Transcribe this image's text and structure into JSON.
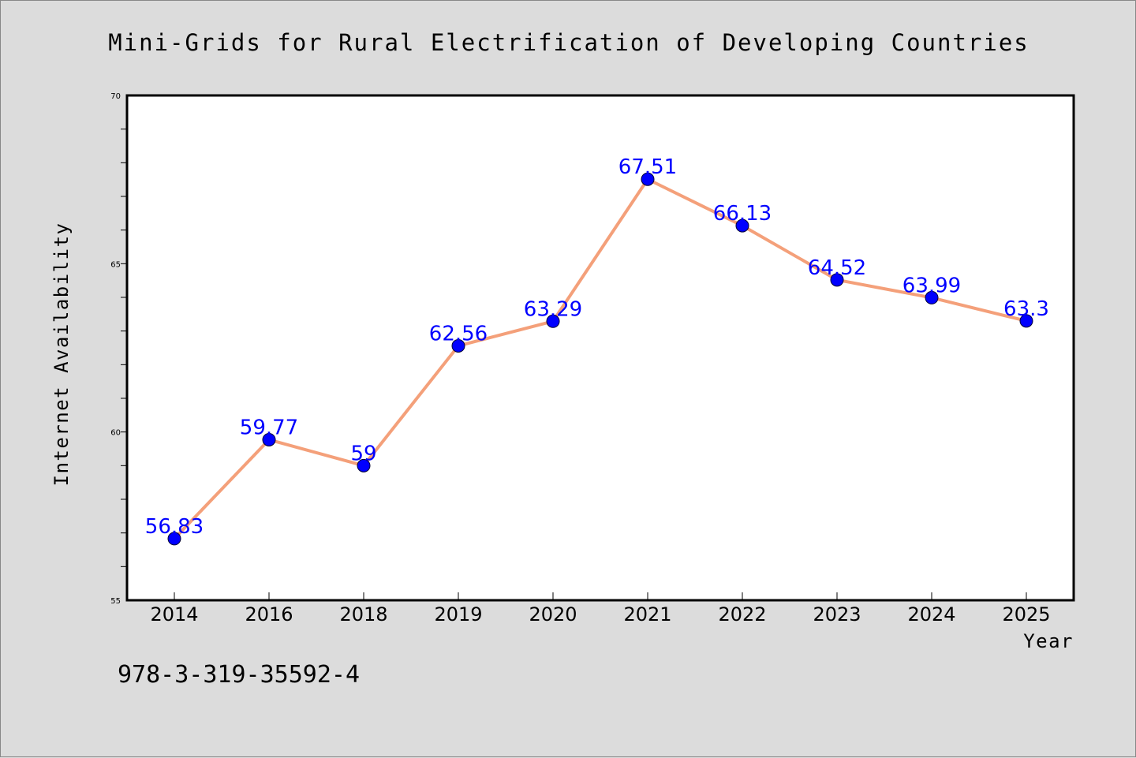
{
  "chart_data": {
    "type": "line",
    "title": "Mini-Grids for Rural Electrification of Developing Countries",
    "xlabel": "Year",
    "ylabel": "Internet Availability",
    "categories": [
      "2014",
      "2016",
      "2018",
      "2019",
      "2020",
      "2021",
      "2022",
      "2023",
      "2024",
      "2025"
    ],
    "series": [
      {
        "values": [
          56.83,
          59.77,
          59,
          62.56,
          63.29,
          67.51,
          66.13,
          64.52,
          63.99,
          63.3
        ],
        "labels": [
          "56.83",
          "59.77",
          "59",
          "62.56",
          "63.29",
          "67.51",
          "66.13",
          "64.52",
          "63.99",
          "63.3"
        ],
        "line_color": "#f4a07a",
        "marker_color": "#0000ff"
      }
    ],
    "ylim": [
      55,
      70
    ],
    "yticks": [
      "55",
      "60",
      "65",
      "70"
    ],
    "grid": false,
    "legend": "none"
  },
  "footer": {
    "text": "978-3-319-35592-4"
  },
  "colors": {
    "background": "#dcdcdc",
    "plot_background": "#ffffff",
    "line": "#f4a07a",
    "marker": "#0000ff",
    "data_label": "#0000ff"
  }
}
